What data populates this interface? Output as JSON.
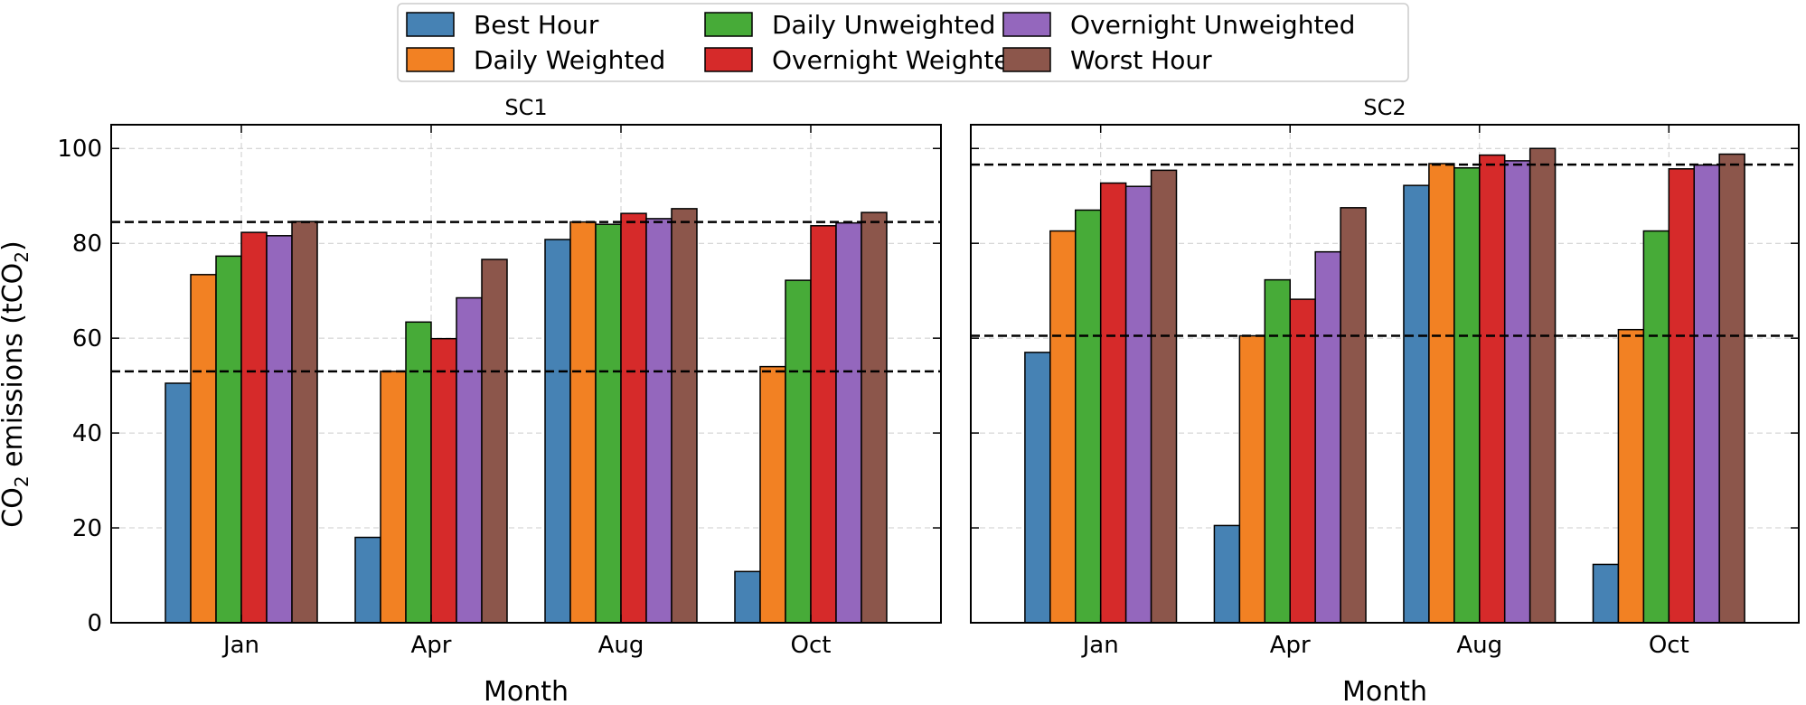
{
  "chart_data": {
    "type": "bar",
    "ylabel_main": "CO",
    "ylabel_sub": "2",
    "ylabel_mid": " emissions (tCO",
    "ylabel_end": ")",
    "ylim": [
      0,
      105
    ],
    "yticks": [
      0,
      20,
      40,
      60,
      80,
      100
    ],
    "grid": true,
    "legend_placement": "top-center",
    "categories": [
      "Jan",
      "Apr",
      "Aug",
      "Oct"
    ],
    "series_names": [
      "Best Hour",
      "Daily Weighted",
      "Daily Unweighted",
      "Overnight Weighted",
      "Overnight Unweighted",
      "Worst Hour"
    ],
    "series_order_in_group": [
      "Best Hour",
      "Daily Weighted",
      "Daily Unweighted",
      "Overnight Weighted",
      "Overnight Unweighted",
      "Worst Hour"
    ],
    "colors": {
      "Best Hour": "#4682b4",
      "Daily Weighted": "#f28123",
      "Daily Unweighted": "#47ab38",
      "Overnight Weighted": "#d62a2a",
      "Overnight Unweighted": "#9467bd",
      "Worst Hour": "#8c564b"
    },
    "panels": [
      {
        "title": "SC1",
        "xlabel": "Month",
        "show_ytick_labels": true,
        "hlines": [
          84.5,
          53.0
        ],
        "series": [
          {
            "name": "Best Hour",
            "values": [
              50.5,
              18.0,
              80.8,
              10.8
            ]
          },
          {
            "name": "Daily Weighted",
            "values": [
              73.4,
              53.0,
              84.5,
              54.0
            ]
          },
          {
            "name": "Daily Unweighted",
            "values": [
              77.3,
              63.4,
              84.0,
              72.2
            ]
          },
          {
            "name": "Overnight Weighted",
            "values": [
              82.3,
              59.9,
              86.3,
              83.7
            ]
          },
          {
            "name": "Overnight Unweighted",
            "values": [
              81.6,
              68.5,
              85.2,
              84.3
            ]
          },
          {
            "name": "Worst Hour",
            "values": [
              84.6,
              76.6,
              87.3,
              86.5
            ]
          }
        ]
      },
      {
        "title": "SC2",
        "xlabel": "Month",
        "show_ytick_labels": false,
        "hlines": [
          96.6,
          60.5
        ],
        "series": [
          {
            "name": "Best Hour",
            "values": [
              57.0,
              20.5,
              92.2,
              12.3
            ]
          },
          {
            "name": "Daily Weighted",
            "values": [
              82.6,
              60.5,
              96.8,
              61.8
            ]
          },
          {
            "name": "Daily Unweighted",
            "values": [
              87.0,
              72.3,
              95.9,
              82.6
            ]
          },
          {
            "name": "Overnight Weighted",
            "values": [
              92.7,
              68.2,
              98.6,
              95.7
            ]
          },
          {
            "name": "Overnight Unweighted",
            "values": [
              92.0,
              78.2,
              97.4,
              96.5
            ]
          },
          {
            "name": "Worst Hour",
            "values": [
              95.4,
              87.5,
              100.0,
              98.8
            ]
          }
        ]
      }
    ]
  }
}
